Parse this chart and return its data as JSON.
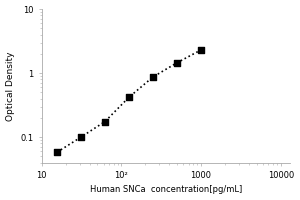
{
  "title": "",
  "xlabel": "Human SNCa  concentration[pg/mL]",
  "ylabel": "Optical Density",
  "x_data": [
    15.625,
    31.25,
    62.5,
    125,
    250,
    500,
    1000
  ],
  "y_data": [
    0.058,
    0.1,
    0.175,
    0.42,
    0.87,
    1.45,
    2.3
  ],
  "xlim": [
    10,
    13000
  ],
  "ylim": [
    0.04,
    10
  ],
  "marker": "s",
  "marker_color": "black",
  "marker_size": 4,
  "line_style": ":",
  "line_color": "black",
  "line_width": 1.2,
  "background_color": "#ffffff",
  "xlabel_fontsize": 6,
  "ylabel_fontsize": 6.5,
  "tick_fontsize": 6
}
